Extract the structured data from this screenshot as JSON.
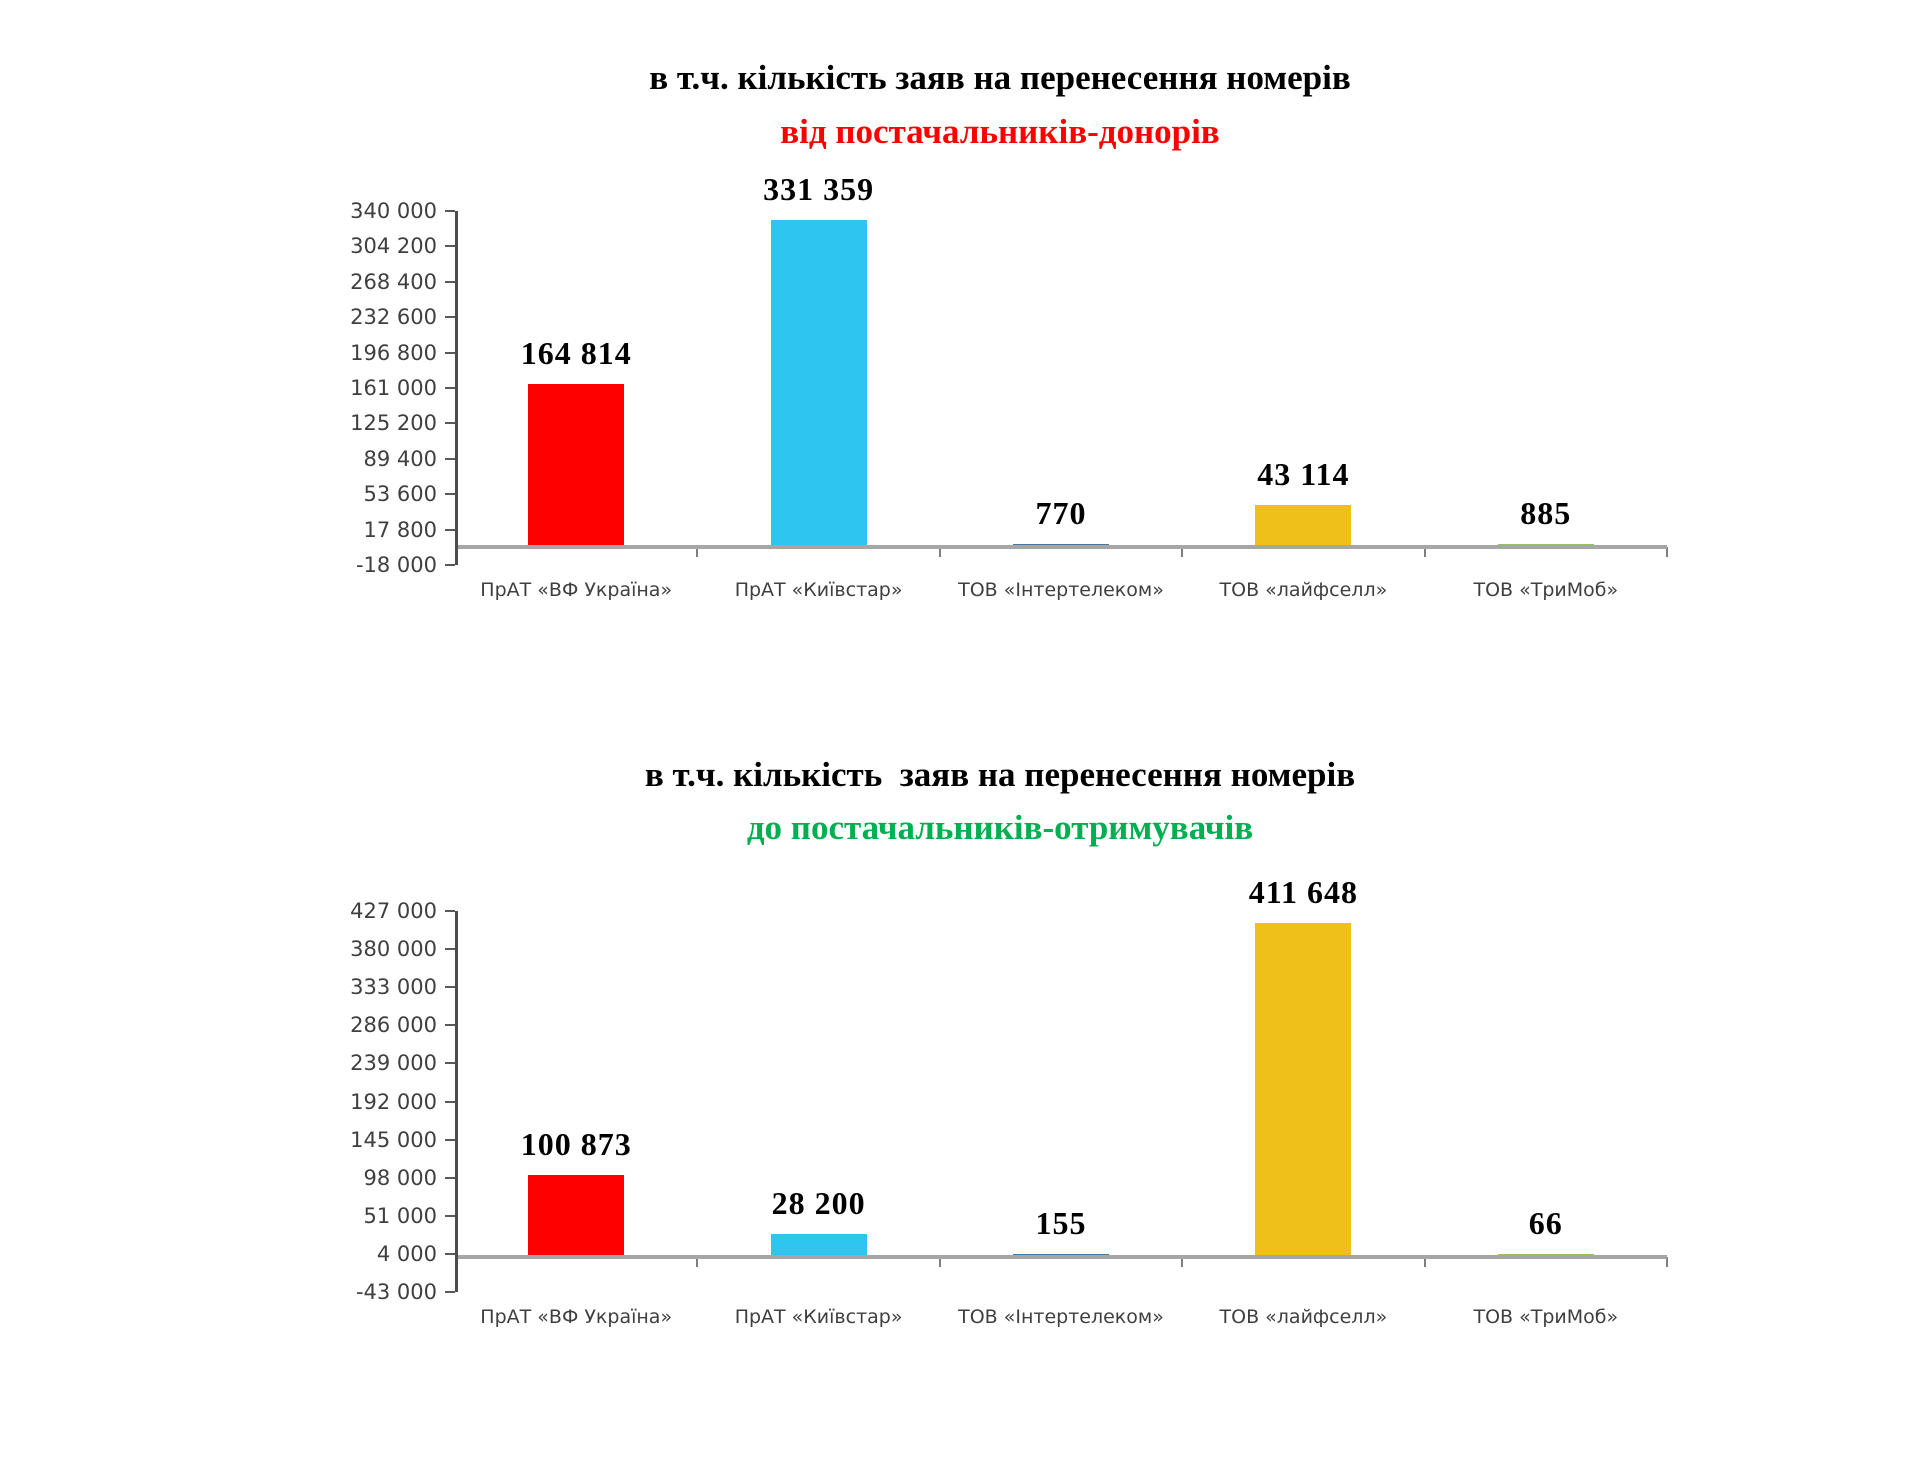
{
  "chart_data": [
    {
      "type": "bar",
      "title_line1": "в т.ч. кількість заяв на перенесення номерів",
      "title_line2": "від постачальників-донорів",
      "title_line2_color": "#ff0000",
      "categories": [
        "ПрАТ «ВФ Україна»",
        "ПрАТ «Київстар»",
        "ТОВ «Інтертелеком»",
        "ТОВ «лайфселл»",
        "ТОВ «ТриМоб»"
      ],
      "values": [
        164814,
        331359,
        770,
        43114,
        885
      ],
      "value_labels": [
        "164 814",
        "331 359",
        "770",
        "43 114",
        "885"
      ],
      "bar_colors": [
        "#fe0000",
        "#2ec6f0",
        "#44789f",
        "#efc01a",
        "#8fc261"
      ],
      "ylim": [
        -18000,
        340000
      ],
      "ytick_step": 35800,
      "ytick_labels": [
        "340 000",
        "304 200",
        "268 400",
        "232 600",
        "196 800",
        "161 000",
        "125 200",
        "89 400",
        "53 600",
        "17 800",
        "-18 000"
      ],
      "xlabel": "",
      "ylabel": "",
      "grid": false,
      "legend": "none"
    },
    {
      "type": "bar",
      "title_line1": "в т.ч. кількість  заяв на перенесення номерів",
      "title_line2": "до постачальників-отримувачів",
      "title_line2_color": "#00b050",
      "categories": [
        "ПрАТ «ВФ Україна»",
        "ПрАТ «Київстар»",
        "ТОВ «Інтертелеком»",
        "ТОВ «лайфселл»",
        "ТОВ «ТриМоб»"
      ],
      "values": [
        100873,
        28200,
        155,
        411648,
        66
      ],
      "value_labels": [
        "100 873",
        "28 200",
        "155",
        "411 648",
        "66"
      ],
      "bar_colors": [
        "#fe0000",
        "#2ec6f0",
        "#44789f",
        "#efc01a",
        "#8fc261"
      ],
      "ylim": [
        -43000,
        427000
      ],
      "ytick_step": 47000,
      "ytick_labels": [
        "427 000",
        "380 000",
        "333 000",
        "286 000",
        "239 000",
        "192 000",
        "145 000",
        "98 000",
        "51 000",
        "4 000",
        "-43 000"
      ],
      "xlabel": "",
      "ylabel": "",
      "grid": false,
      "legend": "none"
    }
  ]
}
